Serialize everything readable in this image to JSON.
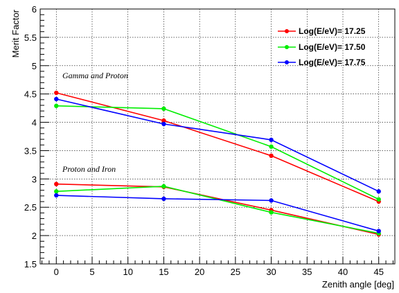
{
  "chart_data": {
    "type": "line",
    "xlabel": "Zenith angle [deg]",
    "ylabel": "Merit Factor",
    "xlim": [
      -2.25,
      47.25
    ],
    "ylim": [
      1.5,
      6
    ],
    "x_ticks": [
      "0",
      "5",
      "10",
      "15",
      "20",
      "25",
      "30",
      "35",
      "40",
      "45"
    ],
    "y_ticks": [
      "1.5",
      "2",
      "2.5",
      "3",
      "3.5",
      "4",
      "4.5",
      "5",
      "5.5",
      "6"
    ],
    "grid": true,
    "legend_position": "top-right",
    "annotations": [
      {
        "text": "Gamma and Proton",
        "x": 1,
        "y": 4.9
      },
      {
        "text": "Proton and Iron",
        "x": 1,
        "y": 2.95
      }
    ],
    "x": [
      0,
      15,
      30,
      45
    ],
    "series": [
      {
        "name": "Log(E/eV)= 17.25",
        "color": "#ff0000",
        "group": "Gamma and Proton",
        "values": [
          4.52,
          4.03,
          3.41,
          2.6
        ]
      },
      {
        "name": "Log(E/eV)= 17.50",
        "color": "#00ee00",
        "group": "Gamma and Proton",
        "values": [
          4.29,
          4.24,
          3.57,
          2.64
        ]
      },
      {
        "name": "Log(E/eV)= 17.75",
        "color": "#0000ff",
        "group": "Gamma and Proton",
        "values": [
          4.41,
          3.97,
          3.69,
          2.78
        ]
      },
      {
        "name": "Log(E/eV)= 17.25",
        "color": "#ff0000",
        "group": "Proton and Iron",
        "values": [
          2.91,
          2.86,
          2.45,
          2.02
        ]
      },
      {
        "name": "Log(E/eV)= 17.50",
        "color": "#00ee00",
        "group": "Proton and Iron",
        "values": [
          2.78,
          2.87,
          2.41,
          2.04
        ]
      },
      {
        "name": "Log(E/eV)= 17.75",
        "color": "#0000ff",
        "group": "Proton and Iron",
        "values": [
          2.71,
          2.65,
          2.62,
          2.08
        ]
      }
    ],
    "legend": [
      {
        "label": "Log(E/eV)= 17.25",
        "color": "#ff0000"
      },
      {
        "label": "Log(E/eV)= 17.50",
        "color": "#00ee00"
      },
      {
        "label": "Log(E/eV)= 17.75",
        "color": "#0000ff"
      }
    ]
  }
}
